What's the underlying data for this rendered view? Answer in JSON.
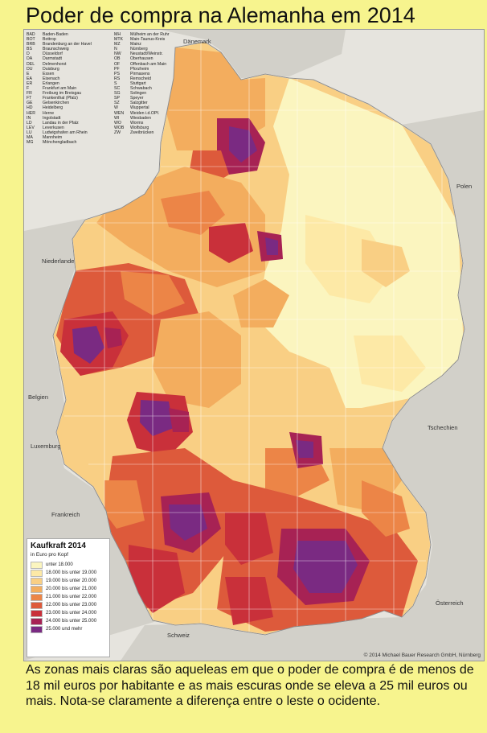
{
  "title": "Poder de compra na Alemanha em 2014",
  "map": {
    "countries": [
      {
        "key": "daenemark",
        "label": "Dänemark"
      },
      {
        "key": "polen",
        "label": "Polen"
      },
      {
        "key": "niederlande",
        "label": "Niederlande"
      },
      {
        "key": "belgien",
        "label": "Belgien"
      },
      {
        "key": "luxemburg",
        "label": "Luxemburg"
      },
      {
        "key": "tschechien",
        "label": "Tschechien"
      },
      {
        "key": "frankreich",
        "label": "Frankreich"
      },
      {
        "key": "oesterreich",
        "label": "Österreich"
      },
      {
        "key": "schweiz",
        "label": "Schweiz"
      }
    ],
    "abbreviations": [
      [
        "BAD",
        "Baden-Baden",
        "MH",
        "Mülheim an der Ruhr"
      ],
      [
        "BOT",
        "Bottrop",
        "MTK",
        "Main-Taunus-Kreis"
      ],
      [
        "BRB",
        "Brandenburg an der Havel",
        "MZ",
        "Mainz"
      ],
      [
        "BS",
        "Braunschweig",
        "N",
        "Nürnberg"
      ],
      [
        "D",
        "Düsseldorf",
        "NW",
        "Neustadt/Weinstr."
      ],
      [
        "DA",
        "Darmstadt",
        "OB",
        "Oberhausen"
      ],
      [
        "DEL",
        "Delmenhorst",
        "OF",
        "Offenbach am Main"
      ],
      [
        "DU",
        "Duisburg",
        "PF",
        "Pforzheim"
      ],
      [
        "E",
        "Essen",
        "PS",
        "Pirmasens"
      ],
      [
        "EA",
        "Eisenach",
        "RS",
        "Remscheid"
      ],
      [
        "ER",
        "Erlangen",
        "S",
        "Stuttgart"
      ],
      [
        "F",
        "Frankfurt am Main",
        "SC",
        "Schwabach"
      ],
      [
        "FR",
        "Freiburg im Breisgau",
        "SG",
        "Solingen"
      ],
      [
        "FT",
        "Frankenthal (Pfalz)",
        "SP",
        "Speyer"
      ],
      [
        "GE",
        "Gelsenkirchen",
        "SZ",
        "Salzgitter"
      ],
      [
        "HD",
        "Heidelberg",
        "W",
        "Wuppertal"
      ],
      [
        "HER",
        "Herne",
        "WEN",
        "Weiden i.d.OPf."
      ],
      [
        "IN",
        "Ingolstadt",
        "WI",
        "Wiesbaden"
      ],
      [
        "LD",
        "Landau in der Pfalz",
        "WO",
        "Worms"
      ],
      [
        "LEV",
        "Leverkusen",
        "WOB",
        "Wolfsburg"
      ],
      [
        "LU",
        "Ludwigshafen am Rhein",
        "ZW",
        "Zweibrücken"
      ],
      [
        "MA",
        "Mannheim",
        "",
        ""
      ],
      [
        "MG",
        "Mönchengladbach",
        "",
        ""
      ]
    ],
    "colors": {
      "water": "#e6e4de",
      "neighbor": "#d2d0c9",
      "border": "#ffffff"
    },
    "copyright": "© 2014 Michael Bauer Research GmbH, Nürnberg"
  },
  "legend": {
    "title": "Kaufkraft 2014",
    "subtitle": "in Euro pro Kopf",
    "classes": [
      {
        "label": "unter 18.000",
        "color": "#fbf5bf"
      },
      {
        "label": "18.000 bis unter 19.000",
        "color": "#fde9a6"
      },
      {
        "label": "19.000 bis unter 20.000",
        "color": "#f9cf84"
      },
      {
        "label": "20.000 bis unter 21.000",
        "color": "#f3ad5e"
      },
      {
        "label": "21.000 bis unter 22.000",
        "color": "#ec8547"
      },
      {
        "label": "22.000 bis unter 23.000",
        "color": "#dd5a3b"
      },
      {
        "label": "23.000 bis unter 24.000",
        "color": "#c9303a"
      },
      {
        "label": "24.000 bis unter 25.000",
        "color": "#a72254"
      },
      {
        "label": "25.000 und mehr",
        "color": "#7a2a82"
      }
    ]
  },
  "caption": "As zonas mais claras são aqueleas em que o poder de compra é de menos de 18 mil euros por habitante e as mais escuras onde se eleva a 25 mil euros ou mais.  Nota-se claramente a diferença entre o leste o ocidente."
}
